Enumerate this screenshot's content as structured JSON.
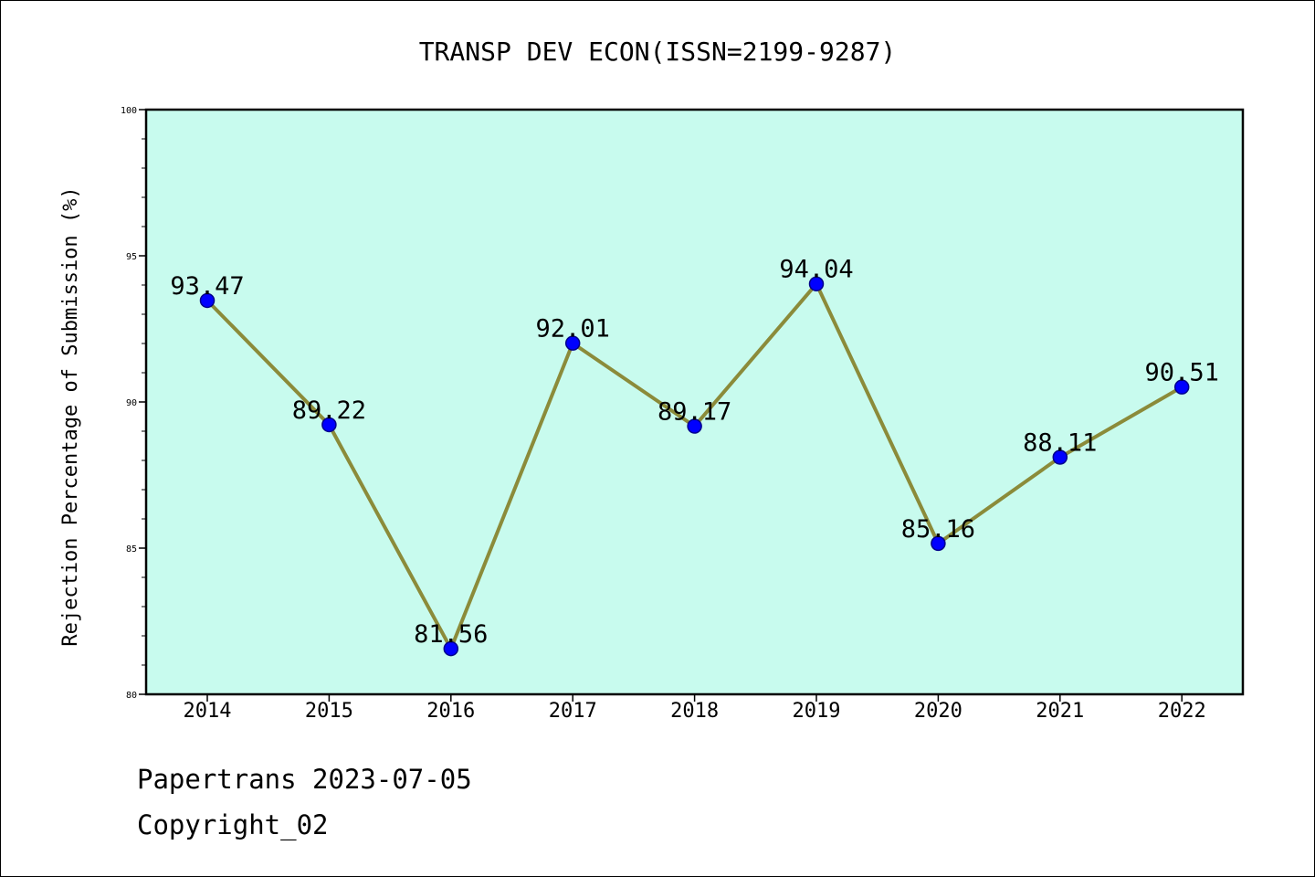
{
  "chart_data": {
    "type": "line",
    "title": "TRANSP DEV ECON(ISSN=2199-9287)",
    "xlabel": "",
    "ylabel": "Rejection Percentage of Submission (%)",
    "categories": [
      "2014",
      "2015",
      "2016",
      "2017",
      "2018",
      "2019",
      "2020",
      "2021",
      "2022"
    ],
    "values": [
      93.47,
      89.22,
      81.56,
      92.01,
      89.17,
      94.04,
      85.16,
      88.11,
      90.51
    ],
    "data_labels": [
      "93.47",
      "89.22",
      "81.56",
      "92.01",
      "89.17",
      "94.04",
      "85.16",
      "88.11",
      "90.51"
    ],
    "ylim": [
      80,
      100
    ],
    "yticks": [
      "80",
      "85",
      "90",
      "95",
      "100"
    ],
    "grid": false,
    "colors": {
      "plot_background": "#c8fbee",
      "line": "#8b8b3a",
      "marker": "#0000ff",
      "marker_edge": "#00008b"
    }
  },
  "footer": {
    "source": "Papertrans 2023-07-05",
    "copyright": "Copyright_02"
  }
}
